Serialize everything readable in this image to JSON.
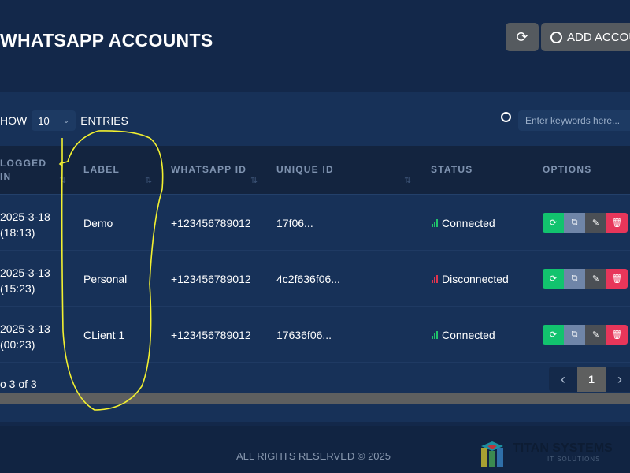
{
  "header": {
    "title": "WHATSAPP ACCOUNTS",
    "refresh_icon": "refresh-icon",
    "add_label": "ADD ACCOU"
  },
  "controls": {
    "show_label": "HOW",
    "entries_value": "10",
    "entries_label": "ENTRIES",
    "search_placeholder": "Enter keywords here..."
  },
  "table": {
    "columns": [
      "LOGGED IN",
      "LABEL",
      "WHATSAPP ID",
      "UNIQUE ID",
      "STATUS",
      "OPTIONS"
    ],
    "rows": [
      {
        "logged_date": "2025-3-18",
        "logged_time": "(18:13)",
        "label": "Demo",
        "whatsapp_id": "+123456789012",
        "unique_id": "17f06...",
        "status": "Connected"
      },
      {
        "logged_date": "2025-3-13",
        "logged_time": "(15:23)",
        "label": "Personal",
        "whatsapp_id": "+123456789012",
        "unique_id": "4c2f636f06...",
        "status": "Disconnected"
      },
      {
        "logged_date": "2025-3-13",
        "logged_time": "(00:23)",
        "label": "CLient 1",
        "whatsapp_id": "+123456789012",
        "unique_id": "17636f06...",
        "status": "Connected"
      }
    ]
  },
  "pagination": {
    "info": "o 3 of 3",
    "current_page": "1"
  },
  "footer": {
    "copyright": "ALL RIGHTS RESERVED © 2025",
    "logo_text": "TITAN SYSTEMS",
    "logo_sub": "IT SOLUTIONS"
  },
  "colors": {
    "connected": "#1fc46b",
    "disconnected": "#e0344f",
    "reconnect": "#12c36e",
    "copy": "#6f85a8",
    "edit": "#4b4f55",
    "delete": "#e7365a",
    "annotation": "#f2f030"
  }
}
